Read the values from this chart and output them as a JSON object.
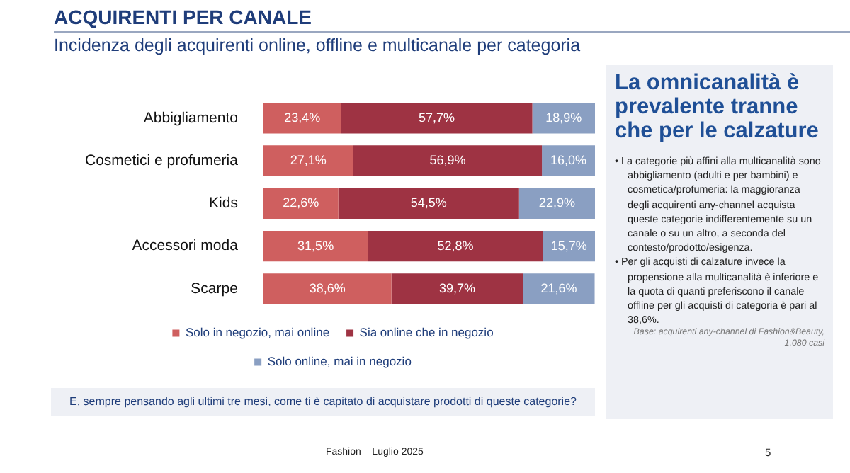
{
  "chart_data": {
    "type": "bar",
    "orientation": "horizontal",
    "stacked": true,
    "title": "ACQUIRENTI PER CANALE",
    "subtitle": "Incidenza degli acquirenti online, offline e multicanale per categoria",
    "categories": [
      "Abbigliamento",
      "Cosmetici e profumeria",
      "Kids",
      "Accessori moda",
      "Scarpe"
    ],
    "series": [
      {
        "name": "Solo in negozio, mai online",
        "color": "#cf5f5f",
        "values": [
          23.4,
          27.1,
          22.6,
          31.5,
          38.6
        ],
        "value_labels": [
          "23,4%",
          "27,1%",
          "22,6%",
          "31,5%",
          "38,6%"
        ]
      },
      {
        "name": "Sia online che in negozio",
        "color": "#9e3343",
        "values": [
          57.7,
          56.9,
          54.5,
          52.8,
          39.7
        ],
        "value_labels": [
          "57,7%",
          "56,9%",
          "54,5%",
          "52,8%",
          "39,7%"
        ]
      },
      {
        "name": "Solo online, mai in negozio",
        "color": "#8a9fc2",
        "values": [
          18.9,
          16.0,
          22.9,
          15.7,
          21.6
        ],
        "value_labels": [
          "18,9%",
          "16,0%",
          "22,9%",
          "15,7%",
          "21,6%"
        ]
      }
    ],
    "xlim": [
      0,
      100
    ],
    "tick_labels": "y",
    "legend": "bottom",
    "annotations": [
      "La omnicanalità è prevalente tranne che per le calzature",
      "• La categorie più affini alla multicanalità sono abbigliamento (adulti e per bambini) e cosmetica/profumeria: la maggioranza degli acquirenti any-channel acquista queste categorie indifferentemente su un canale o su un altro, a seconda del contesto/prodotto/esigenza.",
      "• Per gli acquisti di calzature invece la propensione alla multicanalità è inferiore e la quota di quanti preferiscono il canale offline per gli acquisti di categoria è pari al 38,6%.",
      "Base: acquirenti any-channel di Fashion&Beauty, 1.080 casi",
      "E, sempre pensando agli ultimi tre mesi, come ti è capitato di acquistare prodotti di queste categorie?",
      "Fashion – Luglio 2025",
      "5"
    ]
  }
}
